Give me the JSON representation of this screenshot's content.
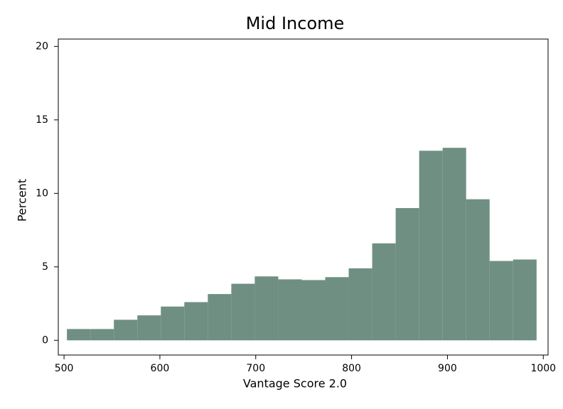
{
  "chart_data": {
    "type": "histogram",
    "title": "Mid Income",
    "x_label": "Vantage Score 2.0",
    "y_label": "Percent",
    "bins": [
      503,
      527.5,
      552,
      576.5,
      601,
      625.5,
      650,
      674.5,
      699,
      723.5,
      748,
      772.5,
      797,
      821.5,
      846,
      870.5,
      895,
      919.5,
      944,
      968.5,
      993
    ],
    "counts": [
      0.77,
      0.77,
      1.4,
      1.7,
      2.3,
      2.6,
      3.15,
      3.85,
      4.35,
      4.15,
      4.1,
      4.3,
      4.9,
      6.6,
      9.0,
      12.9,
      13.1,
      9.6,
      5.4,
      5.5
    ],
    "color": "#6f8f82",
    "xlim": [
      494,
      1005
    ],
    "xticks": [
      500,
      600,
      700,
      800,
      900,
      1000
    ],
    "ylim": [
      -1,
      20.5
    ],
    "yticks": [
      0,
      5,
      10,
      15,
      20
    ]
  }
}
